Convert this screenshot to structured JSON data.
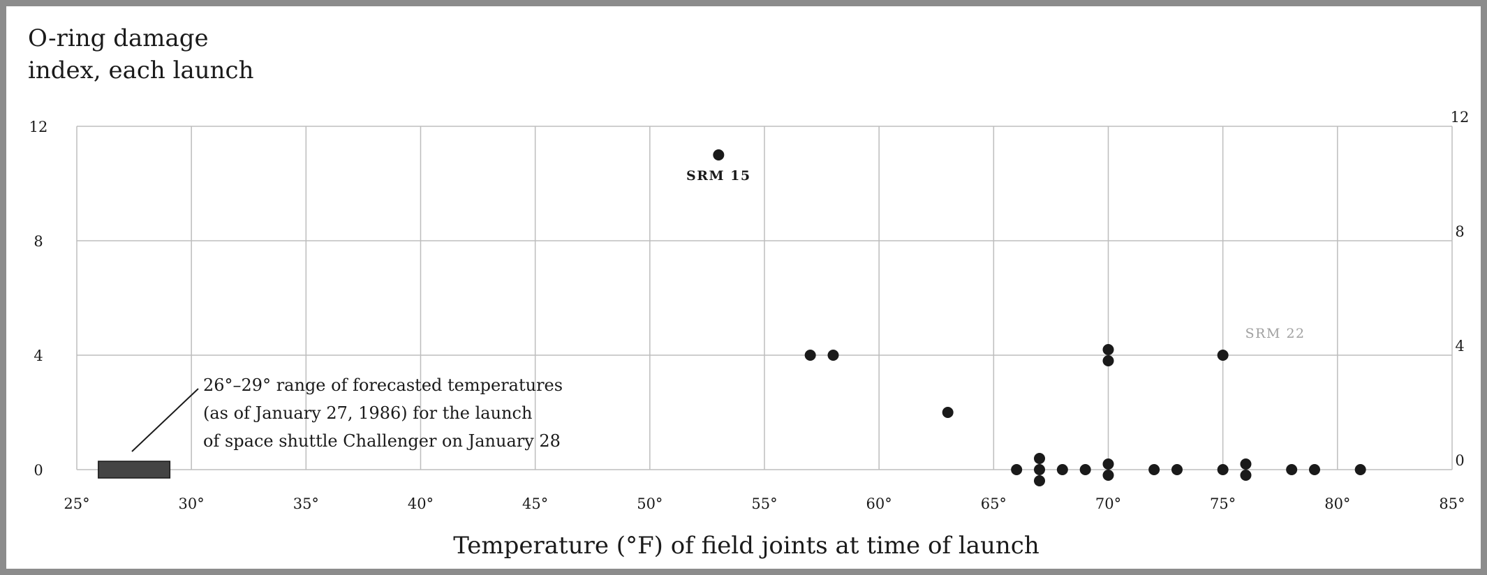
{
  "chart_data": {
    "type": "scatter",
    "title": "O-ring damage\nindex, each launch",
    "xlabel": "Temperature (°F) of field joints at time of launch",
    "ylabel": "",
    "xlim": [
      25,
      85
    ],
    "ylim": [
      0,
      12
    ],
    "x_ticks": [
      25,
      30,
      35,
      40,
      45,
      50,
      55,
      60,
      65,
      70,
      75,
      80,
      85
    ],
    "x_tick_labels": [
      "25°",
      "30°",
      "35°",
      "40°",
      "45°",
      "50°",
      "55°",
      "60°",
      "65°",
      "70°",
      "75°",
      "80°",
      "85°"
    ],
    "y_ticks": [
      0,
      4,
      8,
      12
    ],
    "y_tick_labels": [
      "0",
      "4",
      "8",
      "12"
    ],
    "grid": true,
    "points": [
      {
        "x": 53,
        "y": 11
      },
      {
        "x": 57,
        "y": 4
      },
      {
        "x": 58,
        "y": 4
      },
      {
        "x": 63,
        "y": 2
      },
      {
        "x": 66,
        "y": 0
      },
      {
        "x": 67,
        "y": 0
      },
      {
        "x": 67,
        "y": 0
      },
      {
        "x": 67,
        "y": 0
      },
      {
        "x": 68,
        "y": 0
      },
      {
        "x": 69,
        "y": 0
      },
      {
        "x": 70,
        "y": 4
      },
      {
        "x": 70,
        "y": 4
      },
      {
        "x": 70,
        "y": 0
      },
      {
        "x": 70,
        "y": 0
      },
      {
        "x": 72,
        "y": 0
      },
      {
        "x": 73,
        "y": 0
      },
      {
        "x": 75,
        "y": 4
      },
      {
        "x": 75,
        "y": 0
      },
      {
        "x": 76,
        "y": 0
      },
      {
        "x": 76,
        "y": 0
      },
      {
        "x": 78,
        "y": 0
      },
      {
        "x": 79,
        "y": 0
      },
      {
        "x": 81,
        "y": 0
      }
    ],
    "point_labels": [
      {
        "text": "SRM 15",
        "x": 53,
        "y": 11
      },
      {
        "text": "SRM 22",
        "x": 75,
        "y": 4
      }
    ],
    "forecast_range": {
      "x_min": 26,
      "x_max": 29,
      "y": 0
    },
    "annotation": {
      "lines": [
        "26°–29° range of forecasted temperatures",
        "(as of January 27, 1986) for the launch",
        "of space shuttle Challenger on January 28"
      ]
    },
    "colors": {
      "point": "#1a1a1a",
      "grid": "#bdbdbd",
      "forecast_bar": "#444444",
      "srm22_label": "#a0a0a0",
      "frame": "#8c8c8c"
    }
  }
}
